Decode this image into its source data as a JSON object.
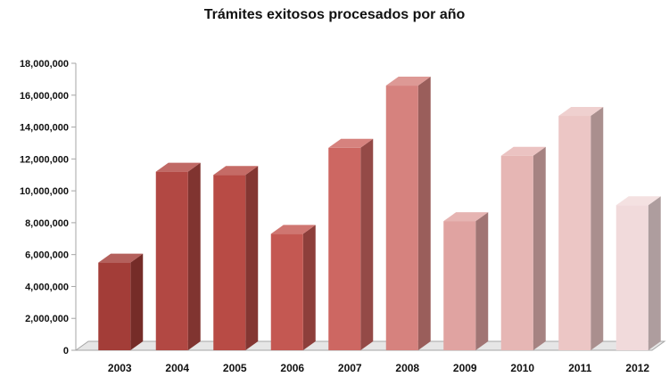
{
  "chart_data": {
    "type": "bar",
    "title": "Trámites exitosos procesados por año",
    "xlabel": "",
    "ylabel": "",
    "categories": [
      "2003",
      "2004",
      "2005",
      "2006",
      "2007",
      "2008",
      "2009",
      "2010",
      "2011",
      "2012"
    ],
    "values": [
      5500000,
      11200000,
      11000000,
      7300000,
      12700000,
      16600000,
      8100000,
      12200000,
      14700000,
      9100000
    ],
    "ylim": [
      0,
      18000000
    ],
    "yticks": [
      0,
      2000000,
      4000000,
      6000000,
      8000000,
      10000000,
      12000000,
      14000000,
      16000000,
      18000000
    ],
    "ytick_labels": [
      "0",
      "2,000,000",
      "4,000,000",
      "6,000,000",
      "8,000,000",
      "10,000,000",
      "12,000,000",
      "14,000,000",
      "16,000,000",
      "18,000,000"
    ],
    "grid": false,
    "legend": "none",
    "bar_colors": [
      "#a33d38",
      "#b24843",
      "#b84b45",
      "#c45852",
      "#cd6762",
      "#d6827e",
      "#e0a3a1",
      "#e6b6b4",
      "#ecc6c5",
      "#f1dadb"
    ],
    "floor_color": "#e6e6e6",
    "axis_color": "#a6a6a6"
  }
}
